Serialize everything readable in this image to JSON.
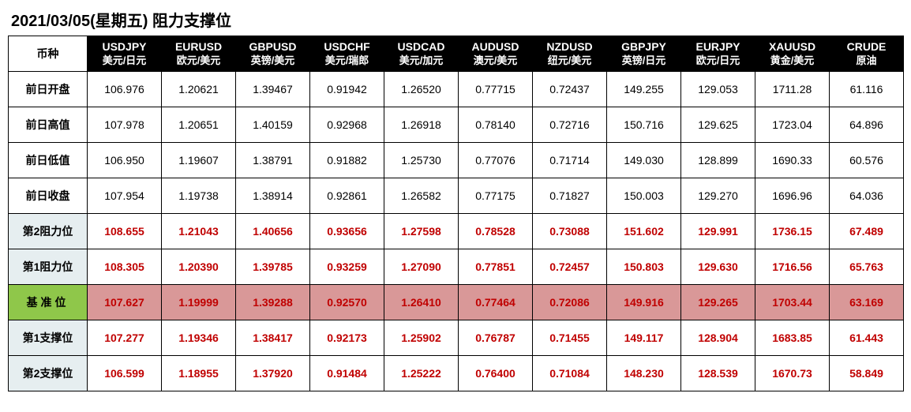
{
  "title": "2021/03/05(星期五) 阻力支撑位",
  "corner_label": "币种",
  "columns": [
    {
      "code": "USDJPY",
      "name": "美元/日元"
    },
    {
      "code": "EURUSD",
      "name": "欧元/美元"
    },
    {
      "code": "GBPUSD",
      "name": "英镑/美元"
    },
    {
      "code": "USDCHF",
      "name": "美元/瑞郎"
    },
    {
      "code": "USDCAD",
      "name": "美元/加元"
    },
    {
      "code": "AUDUSD",
      "name": "澳元/美元"
    },
    {
      "code": "NZDUSD",
      "name": "纽元/美元"
    },
    {
      "code": "GBPJPY",
      "name": "英镑/日元"
    },
    {
      "code": "EURJPY",
      "name": "欧元/日元"
    },
    {
      "code": "XAUUSD",
      "name": "黄金/美元"
    },
    {
      "code": "CRUDE",
      "name": "原油"
    }
  ],
  "rows": [
    {
      "label": "前日开盘",
      "label_style": "plain",
      "value_style": "black",
      "cell_bg": "plain",
      "values": [
        "106.976",
        "1.20621",
        "1.39467",
        "0.91942",
        "1.26520",
        "0.77715",
        "0.72437",
        "149.255",
        "129.053",
        "1711.28",
        "61.116"
      ]
    },
    {
      "label": "前日高值",
      "label_style": "plain",
      "value_style": "black",
      "cell_bg": "plain",
      "values": [
        "107.978",
        "1.20651",
        "1.40159",
        "0.92968",
        "1.26918",
        "0.78140",
        "0.72716",
        "150.716",
        "129.625",
        "1723.04",
        "64.896"
      ]
    },
    {
      "label": "前日低值",
      "label_style": "plain",
      "value_style": "black",
      "cell_bg": "plain",
      "values": [
        "106.950",
        "1.19607",
        "1.38791",
        "0.91882",
        "1.25730",
        "0.77076",
        "0.71714",
        "149.030",
        "128.899",
        "1690.33",
        "60.576"
      ]
    },
    {
      "label": "前日收盘",
      "label_style": "plain",
      "value_style": "black",
      "cell_bg": "plain",
      "values": [
        "107.954",
        "1.19738",
        "1.38914",
        "0.92861",
        "1.26582",
        "0.77175",
        "0.71827",
        "150.003",
        "129.270",
        "1696.96",
        "64.036"
      ]
    },
    {
      "label": "第2阻力位",
      "label_style": "light",
      "value_style": "red",
      "cell_bg": "plain",
      "values": [
        "108.655",
        "1.21043",
        "1.40656",
        "0.93656",
        "1.27598",
        "0.78528",
        "0.73088",
        "151.602",
        "129.991",
        "1736.15",
        "67.489"
      ]
    },
    {
      "label": "第1阻力位",
      "label_style": "light",
      "value_style": "red",
      "cell_bg": "plain",
      "values": [
        "108.305",
        "1.20390",
        "1.39785",
        "0.93259",
        "1.27090",
        "0.77851",
        "0.72457",
        "150.803",
        "129.630",
        "1716.56",
        "65.763"
      ]
    },
    {
      "label": "基准位",
      "label_style": "green",
      "value_style": "red",
      "cell_bg": "pink",
      "values": [
        "107.627",
        "1.19999",
        "1.39288",
        "0.92570",
        "1.26410",
        "0.77464",
        "0.72086",
        "149.916",
        "129.265",
        "1703.44",
        "63.169"
      ]
    },
    {
      "label": "第1支撑位",
      "label_style": "light",
      "value_style": "red",
      "cell_bg": "plain",
      "values": [
        "107.277",
        "1.19346",
        "1.38417",
        "0.92173",
        "1.25902",
        "0.76787",
        "0.71455",
        "149.117",
        "128.904",
        "1683.85",
        "61.443"
      ]
    },
    {
      "label": "第2支撑位",
      "label_style": "light",
      "value_style": "red",
      "cell_bg": "plain",
      "values": [
        "106.599",
        "1.18955",
        "1.37920",
        "0.91484",
        "1.25222",
        "0.76400",
        "0.71084",
        "148.230",
        "128.539",
        "1670.73",
        "58.849"
      ]
    }
  ],
  "colors": {
    "header_bg": "#000000",
    "header_fg": "#ffffff",
    "label_light_bg": "#e6eef0",
    "label_green_bg": "#8fc74a",
    "value_red": "#c00000",
    "cell_pink_bg": "#d99898",
    "border": "#000000",
    "page_bg": "#ffffff"
  }
}
